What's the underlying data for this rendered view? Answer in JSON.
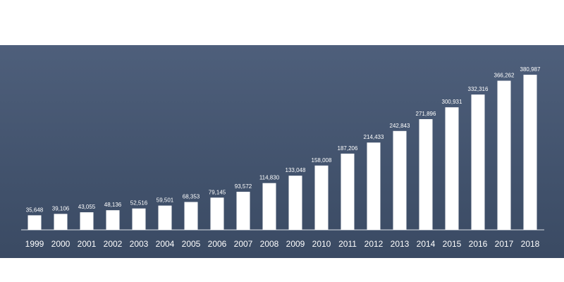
{
  "chart_data": {
    "type": "bar",
    "title": "",
    "xlabel": "",
    "ylabel": "",
    "categories": [
      "1999",
      "2000",
      "2001",
      "2002",
      "2003",
      "2004",
      "2005",
      "2006",
      "2007",
      "2008",
      "2009",
      "2010",
      "2011",
      "2012",
      "2013",
      "2014",
      "2015",
      "2016",
      "2017",
      "2018"
    ],
    "values": [
      35648,
      39106,
      43055,
      48136,
      52516,
      59501,
      68353,
      79145,
      93572,
      114830,
      133048,
      158008,
      187206,
      214433,
      242843,
      271896,
      300931,
      332316,
      366262,
      380987
    ],
    "value_labels": [
      "35,648",
      "39,106",
      "43,055",
      "48,136",
      "52,516",
      "59,501",
      "68,353",
      "79,145",
      "93,572",
      "114,830",
      "133,048",
      "158,008",
      "187,206",
      "214,433",
      "242,843",
      "271,896",
      "300,931",
      "332,316",
      "366,262",
      "380,987"
    ],
    "ylim": [
      0,
      380987
    ],
    "grid": false,
    "legend": "none",
    "colors": {
      "background_top": "#4e5f7b",
      "background_bottom": "#3a4a63",
      "bar": "#ffffff",
      "text": "#ffffff"
    }
  }
}
